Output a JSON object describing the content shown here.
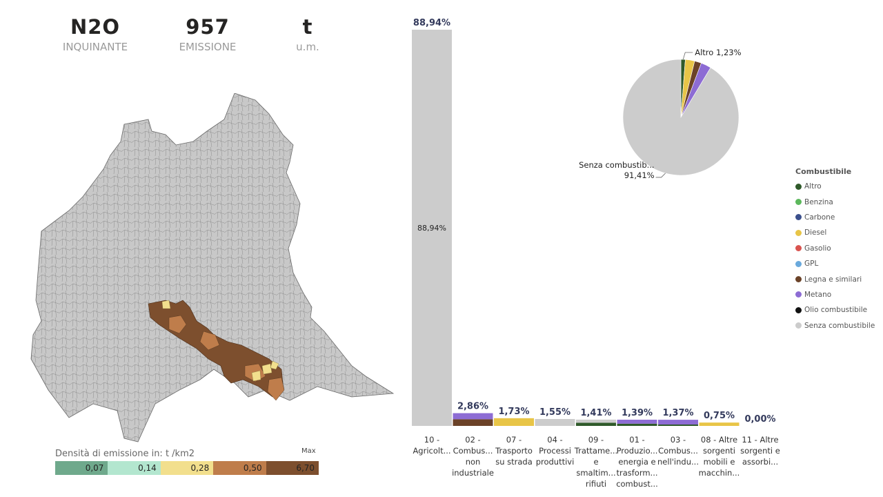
{
  "kpis": [
    {
      "value": "N2O",
      "label": "INQUINANTE"
    },
    {
      "value": "957",
      "label": "EMISSIONE"
    },
    {
      "value": "t",
      "label": "u.m."
    }
  ],
  "map_legend": {
    "title": "Densità di emissione in:  t  /km2",
    "max_label": "Max",
    "segments": [
      {
        "label": "0,07",
        "color": "#6fa98c"
      },
      {
        "label": "0,14",
        "color": "#b3e6cf"
      },
      {
        "label": "0,28",
        "color": "#f2df8d"
      },
      {
        "label": "0,50",
        "color": "#bf7d4b"
      },
      {
        "label": "6,70",
        "color": "#7d4f2e"
      }
    ]
  },
  "pie_legend_title": "Combustibile",
  "chart_data": [
    {
      "type": "bar",
      "stacked": true,
      "categories": [
        [
          "10 -",
          "Agricolt..."
        ],
        [
          "02 -",
          "Combus...",
          "non",
          "industriale"
        ],
        [
          "07 -",
          "Trasporto",
          "su strada"
        ],
        [
          "04 -",
          "Processi",
          "produttivi"
        ],
        [
          "09 -",
          "Trattame...",
          "e",
          "smaltim...",
          "rifiuti"
        ],
        [
          "01 -",
          "Produzio...",
          "energia e",
          "trasform...",
          "combust..."
        ],
        [
          "03 -",
          "Combus...",
          "nell'indu..."
        ],
        [
          "08 - Altre",
          "sorgenti",
          "mobili e",
          "macchin..."
        ],
        [
          "11 - Altre",
          "sorgenti e",
          "assorbi..."
        ]
      ],
      "totals": [
        88.94,
        2.86,
        1.73,
        1.55,
        1.41,
        1.39,
        1.37,
        0.75,
        0.0
      ],
      "total_labels": [
        "88,94%",
        "2,86%",
        "1,73%",
        "1,55%",
        "1,41%",
        "1,39%",
        "1,37%",
        "0,75%",
        "0,00%"
      ],
      "inner_labels": [
        "88,94%",
        "",
        "",
        "",
        "",
        "",
        "",
        "",
        ""
      ],
      "series": [
        {
          "name": "Altro",
          "color": "#2f5a2a",
          "values": [
            0,
            0,
            0,
            0,
            0.7,
            0.5,
            0.3,
            0,
            0
          ]
        },
        {
          "name": "Legna e similari",
          "color": "#6b4228",
          "values": [
            0,
            1.5,
            0,
            0,
            0,
            0,
            0,
            0,
            0
          ]
        },
        {
          "name": "Diesel",
          "color": "#e8c547",
          "values": [
            0,
            0,
            1.73,
            0,
            0,
            0,
            0,
            0.75,
            0
          ]
        },
        {
          "name": "Metano",
          "color": "#8d6cd4",
          "values": [
            0,
            1.36,
            0,
            0,
            0,
            0.89,
            1.07,
            0,
            0
          ]
        },
        {
          "name": "Senza combustibile",
          "color": "#cccccc",
          "values": [
            88.94,
            0,
            0,
            1.55,
            0.71,
            0,
            0,
            0,
            0
          ]
        }
      ],
      "ymax": 88.94
    },
    {
      "type": "pie",
      "slices": [
        {
          "name": "Altro",
          "value": 1.23,
          "color": "#2f5a2a"
        },
        {
          "name": "Benzina",
          "value": 0,
          "color": "#5cb85c"
        },
        {
          "name": "Carbone",
          "value": 0,
          "color": "#3b4f8c"
        },
        {
          "name": "Diesel",
          "value": 2.6,
          "color": "#e8c547"
        },
        {
          "name": "Gasolio",
          "value": 0,
          "color": "#d9534f"
        },
        {
          "name": "GPL",
          "value": 0,
          "color": "#6aa9dc"
        },
        {
          "name": "Legna e similari",
          "value": 1.9,
          "color": "#6b4228"
        },
        {
          "name": "Metano",
          "value": 2.86,
          "color": "#8d6cd4"
        },
        {
          "name": "Olio combustibile",
          "value": 0,
          "color": "#111111"
        },
        {
          "name": "Senza combustibile",
          "value": 91.41,
          "color": "#cccccc"
        }
      ],
      "callouts": [
        {
          "slice": "Altro",
          "lines": [
            "Altro 1,23%"
          ]
        },
        {
          "slice": "Senza combustibile",
          "lines": [
            "Senza combustib...",
            "91,41%"
          ]
        }
      ]
    }
  ]
}
